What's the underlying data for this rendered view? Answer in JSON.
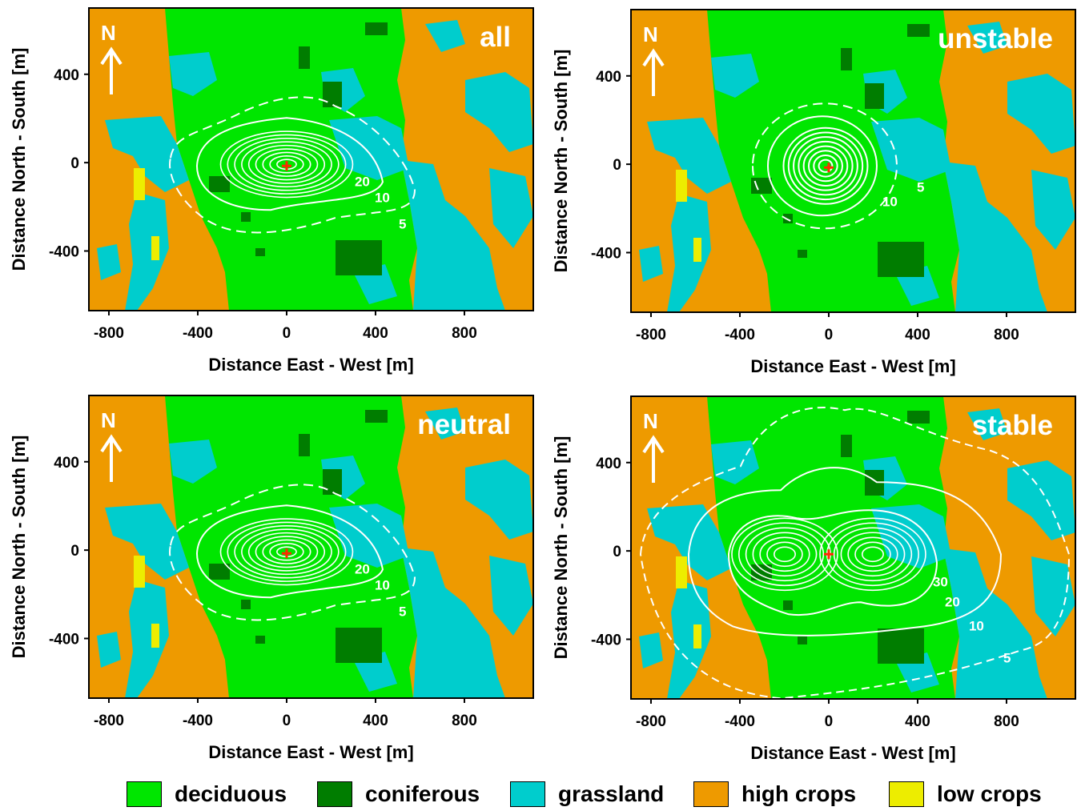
{
  "colors": {
    "deciduous": "#00e600",
    "coniferous": "#007d00",
    "grassland": "#00cdcd",
    "high_crops": "#ee9a00",
    "low_crops": "#eded00",
    "contour": "#ffffff",
    "tower": "#ff2a00"
  },
  "axis": {
    "xlabel": "Distance East - West [m]",
    "ylabel": "Distance North - South [m]",
    "xticks": [
      "-800",
      "-400",
      "0",
      "400",
      "800"
    ],
    "yticks": [
      "400",
      "0",
      "-400"
    ],
    "x_values": [
      -800,
      -400,
      0,
      400,
      800
    ],
    "y_values": [
      400,
      0,
      -400
    ],
    "xlim": [
      -890,
      1110
    ],
    "ylim": [
      -670,
      700
    ]
  },
  "north_label": "N",
  "panels": [
    {
      "title": "all",
      "contours": [
        {
          "label": "5",
          "dashed": true
        },
        {
          "label": "10",
          "dashed": false
        },
        {
          "label": "20",
          "dashed": false
        }
      ]
    },
    {
      "title": "unstable",
      "contours": [
        {
          "label": "5",
          "dashed": true
        },
        {
          "label": "10",
          "dashed": false
        }
      ]
    },
    {
      "title": "neutral",
      "contours": [
        {
          "label": "5",
          "dashed": true
        },
        {
          "label": "10",
          "dashed": false
        },
        {
          "label": "20",
          "dashed": false
        }
      ]
    },
    {
      "title": "stable",
      "contours": [
        {
          "label": "5",
          "dashed": true
        },
        {
          "label": "10",
          "dashed": false
        },
        {
          "label": "20",
          "dashed": false
        },
        {
          "label": "30",
          "dashed": false
        }
      ]
    }
  ],
  "legend": [
    {
      "label": "deciduous",
      "color": "#00e600"
    },
    {
      "label": "coniferous",
      "color": "#007d00"
    },
    {
      "label": "grassland",
      "color": "#00cdcd"
    },
    {
      "label": "high crops",
      "color": "#ee9a00"
    },
    {
      "label": "low crops",
      "color": "#eded00"
    }
  ]
}
